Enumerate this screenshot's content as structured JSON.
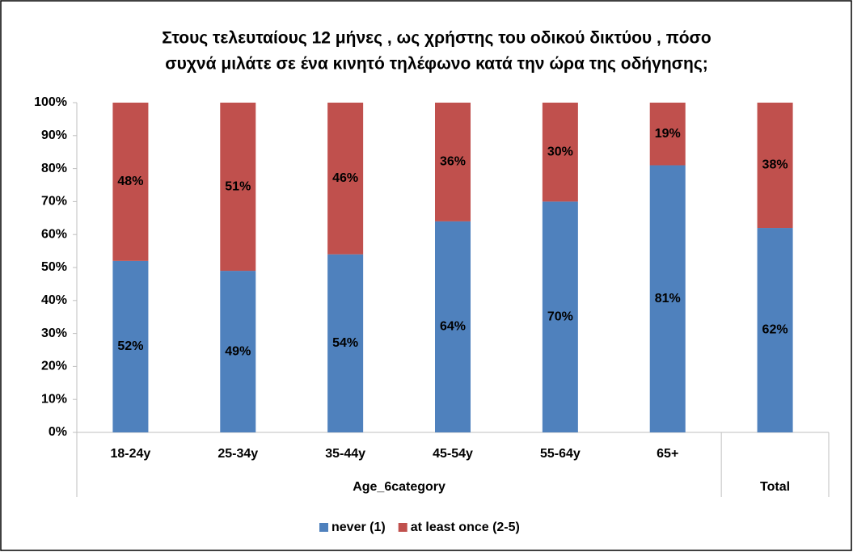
{
  "chart_data": {
    "type": "stacked_bar",
    "title": [
      "Στους τελευταίους 12 μήνες , ως χρήστης του οδικού δικτύου , πόσο",
      "συχνά μιλάτε σε ένα κινητό τηλέφωνο κατά την ώρα της οδήγησης;"
    ],
    "categories": [
      "18-24y",
      "25-34y",
      "35-44y",
      "45-54y",
      "55-64y",
      "65+",
      null
    ],
    "groups": [
      {
        "label": "Age_6category",
        "span": 6
      },
      {
        "label": "Total",
        "span": 1
      }
    ],
    "series": [
      {
        "name": "never (1)",
        "color": "#4f81bd",
        "values": [
          52,
          49,
          54,
          64,
          70,
          81,
          62
        ],
        "value_labels": [
          "52%",
          "49%",
          "54%",
          "64%",
          "70%",
          "81%",
          "62%"
        ]
      },
      {
        "name": "at least once (2-5)",
        "color": "#c0504d",
        "values": [
          48,
          51,
          46,
          36,
          30,
          19,
          38
        ],
        "value_labels": [
          "48%",
          "51%",
          "46%",
          "36%",
          "30%",
          "19%",
          "38%"
        ]
      }
    ],
    "ylim": [
      0,
      100
    ],
    "yticks": [
      {
        "value": 0,
        "label": "0%"
      },
      {
        "value": 10,
        "label": "10%"
      },
      {
        "value": 20,
        "label": "20%"
      },
      {
        "value": 30,
        "label": "30%"
      },
      {
        "value": 40,
        "label": "40%"
      },
      {
        "value": 50,
        "label": "50%"
      },
      {
        "value": 60,
        "label": "60%"
      },
      {
        "value": 70,
        "label": "70%"
      },
      {
        "value": 80,
        "label": "80%"
      },
      {
        "value": 90,
        "label": "90%"
      },
      {
        "value": 100,
        "label": "100%"
      }
    ],
    "legend": "bottom"
  }
}
